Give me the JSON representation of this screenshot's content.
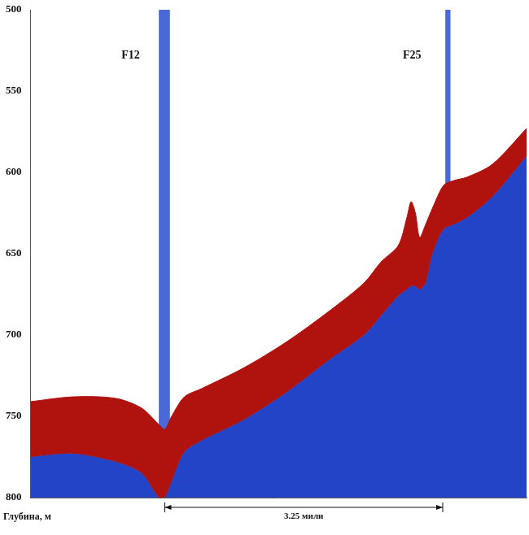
{
  "chart_data": {
    "type": "area",
    "y_label": "Глубина, м",
    "x": [
      0,
      0.5,
      1.0,
      1.3,
      1.5,
      1.57,
      1.65,
      1.8,
      2.0,
      2.5,
      3.0,
      3.5,
      3.9,
      4.1,
      4.3,
      4.4,
      4.45,
      4.5,
      4.55,
      4.62,
      4.7,
      4.83,
      4.95,
      5.1,
      5.4,
      5.8
    ],
    "series": [
      {
        "color": "#b0120e",
        "values": [
          741,
          738,
          739,
          745,
          755,
          758,
          750,
          738,
          733,
          720,
          704,
          685,
          668,
          655,
          645,
          628,
          618,
          625,
          640,
          632,
          622,
          608,
          605,
          603,
          595,
          573
        ]
      },
      {
        "color": "#2444c8",
        "values": [
          775,
          773,
          778,
          785,
          800,
          800,
          790,
          772,
          765,
          752,
          735,
          715,
          700,
          688,
          676,
          672,
          670,
          670,
          672,
          668,
          650,
          635,
          632,
          628,
          615,
          590
        ]
      }
    ],
    "xlim": [
      0,
      5.8
    ],
    "ylim": [
      500,
      800
    ],
    "yticks": [
      500,
      550,
      600,
      650,
      700,
      750,
      800
    ],
    "tick_labels": "y",
    "grid": false,
    "plumes": [
      {
        "x": [
          1.5,
          1.63
        ],
        "depth": [
          500,
          758
        ],
        "color": "#2a4fd0"
      },
      {
        "x": [
          4.85,
          4.91
        ],
        "depth": [
          500,
          612
        ],
        "color": "#2a4fd0"
      }
    ],
    "annotations": [
      {
        "text": "F12",
        "x": 1.17,
        "y": 528
      },
      {
        "text": "F25",
        "x": 4.46,
        "y": 528
      }
    ],
    "distance_marker": {
      "label": "3.25 мили",
      "x": [
        1.57,
        4.82
      ]
    }
  }
}
